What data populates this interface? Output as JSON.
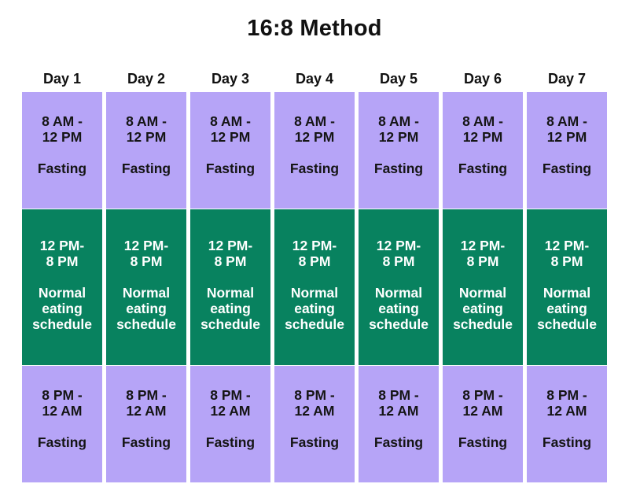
{
  "title": "16:8 Method",
  "days": [
    {
      "name": "Day 1",
      "morning": {
        "time": "8 AM -\n12 PM",
        "label": "Fasting"
      },
      "middle": {
        "time": "12 PM-\n8 PM",
        "label": "Normal\neating\nschedule"
      },
      "night": {
        "time": "8 PM -\n12 AM",
        "label": "Fasting"
      }
    },
    {
      "name": "Day 2",
      "morning": {
        "time": "8 AM -\n12 PM",
        "label": "Fasting"
      },
      "middle": {
        "time": "12 PM-\n8 PM",
        "label": "Normal\neating\nschedule"
      },
      "night": {
        "time": "8 PM -\n12 AM",
        "label": "Fasting"
      }
    },
    {
      "name": "Day 3",
      "morning": {
        "time": "8 AM -\n12 PM",
        "label": "Fasting"
      },
      "middle": {
        "time": "12 PM-\n8 PM",
        "label": "Normal\neating\nschedule"
      },
      "night": {
        "time": "8 PM -\n12 AM",
        "label": "Fasting"
      }
    },
    {
      "name": "Day 4",
      "morning": {
        "time": "8 AM -\n12 PM",
        "label": "Fasting"
      },
      "middle": {
        "time": "12 PM-\n8 PM",
        "label": "Normal\neating\nschedule"
      },
      "night": {
        "time": "8 PM -\n12 AM",
        "label": "Fasting"
      }
    },
    {
      "name": "Day 5",
      "morning": {
        "time": "8 AM -\n12 PM",
        "label": "Fasting"
      },
      "middle": {
        "time": "12 PM-\n8 PM",
        "label": "Normal\neating\nschedule"
      },
      "night": {
        "time": "8 PM -\n12 AM",
        "label": "Fasting"
      }
    },
    {
      "name": "Day 6",
      "morning": {
        "time": "8 AM -\n12 PM",
        "label": "Fasting"
      },
      "middle": {
        "time": "12 PM-\n8 PM",
        "label": "Normal\neating\nschedule"
      },
      "night": {
        "time": "8 PM -\n12 AM",
        "label": "Fasting"
      }
    },
    {
      "name": "Day 7",
      "morning": {
        "time": "8 AM -\n12 PM",
        "label": "Fasting"
      },
      "middle": {
        "time": "12 PM-\n8 PM",
        "label": "Normal\neating\nschedule"
      },
      "night": {
        "time": "8 PM -\n12 AM",
        "label": "Fasting"
      }
    }
  ],
  "colors": {
    "fasting": "#b6a4f7",
    "eating": "#08825f"
  }
}
